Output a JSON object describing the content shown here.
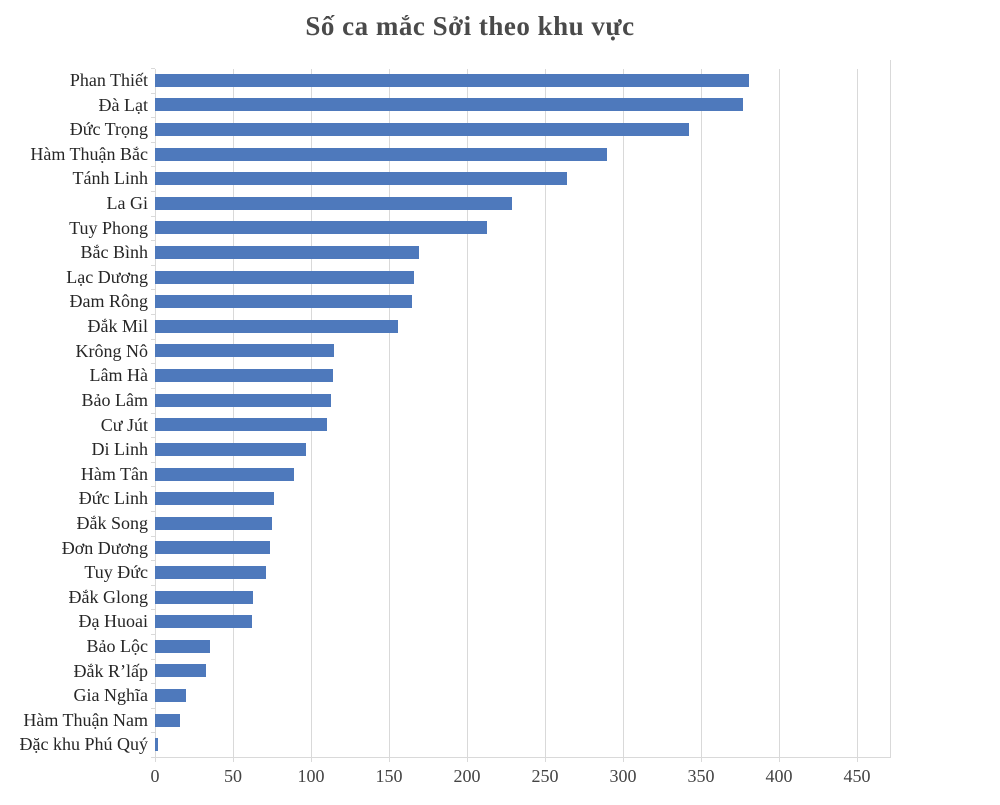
{
  "chart_data": {
    "type": "bar",
    "orientation": "horizontal",
    "title": "Số ca mắc Sởi theo khu vực",
    "xlabel": "",
    "ylabel": "",
    "categories": [
      "Phan Thiết",
      "Đà Lạt",
      "Đức Trọng",
      "Hàm Thuận Bắc",
      "Tánh Linh",
      "La Gi",
      "Tuy Phong",
      "Bắc Bình",
      "Lạc Dương",
      "Đam Rông",
      "Đắk Mil",
      "Krông Nô",
      "Lâm Hà",
      "Bảo Lâm",
      "Cư Jút",
      "Di Linh",
      "Hàm Tân",
      "Đức Linh",
      "Đắk Song",
      "Đơn Dương",
      "Tuy Đức",
      "Đắk Glong",
      "Đạ Huoai",
      "Bảo Lộc",
      "Đắk R’lấp",
      "Gia Nghĩa",
      "Hàm Thuận Nam",
      "Đặc khu Phú Quý"
    ],
    "values": [
      381,
      377,
      342,
      290,
      264,
      229,
      213,
      169,
      166,
      165,
      156,
      115,
      114,
      113,
      110,
      97,
      89,
      76,
      75,
      74,
      71,
      63,
      62,
      35,
      33,
      20,
      16,
      2
    ],
    "xlim": [
      0,
      450
    ],
    "x_ticks": [
      0,
      50,
      100,
      150,
      200,
      250,
      300,
      350,
      400,
      450
    ],
    "x_tick_labels": [
      "0",
      "50",
      "100",
      "150",
      "200",
      "250",
      "300",
      "350",
      "400",
      "450"
    ],
    "grid": true,
    "legend": false,
    "colors": {
      "bar": "#4e79bc",
      "grid": "#d9d9d9",
      "title": "#4a4a4a",
      "category_label": "#262626",
      "tick_label": "#444444"
    }
  }
}
